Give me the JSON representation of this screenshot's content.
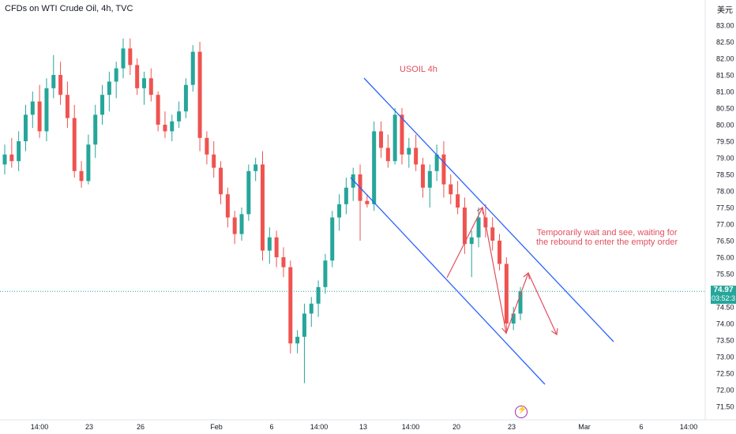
{
  "header": {
    "symbol": "CFDs on WTI Crude Oil, 4h, TVC",
    "currency": "美元"
  },
  "last_price": {
    "value": "74.97",
    "countdown": "03:52:3"
  },
  "annotations": {
    "title": "USOIL 4h",
    "note_line1": "Temporarily wait and see, waiting for",
    "note_line2": "the rebound to enter the empty order"
  },
  "colors": {
    "up": "#26a69a",
    "down": "#ef5350",
    "channel": "#2962ff",
    "arrow": "#e04f5f",
    "last_price_line": "#26a69a"
  },
  "chart_data": {
    "type": "candlestick",
    "title": "CFDs on WTI Crude Oil, 4h, TVC",
    "ylim": [
      71.25,
      83.25
    ],
    "y_ticks": [
      "83.00",
      "82.50",
      "82.00",
      "81.50",
      "81.00",
      "80.50",
      "80.00",
      "79.50",
      "79.00",
      "78.50",
      "78.00",
      "77.50",
      "77.00",
      "76.50",
      "76.00",
      "75.50",
      "75.00",
      "74.50",
      "74.00",
      "73.50",
      "73.00",
      "72.50",
      "72.00",
      "71.50"
    ],
    "x_ticks": [
      "14:00",
      "23",
      "26",
      "Feb",
      "6",
      "14:00",
      "13",
      "14:00",
      "20",
      "23",
      "Mar",
      "6",
      "14:00"
    ],
    "candles": [
      {
        "o": 78.8,
        "h": 79.4,
        "l": 78.5,
        "c": 79.1
      },
      {
        "o": 79.1,
        "h": 79.6,
        "l": 78.7,
        "c": 78.9
      },
      {
        "o": 78.9,
        "h": 79.8,
        "l": 78.6,
        "c": 79.5
      },
      {
        "o": 79.5,
        "h": 80.6,
        "l": 79.2,
        "c": 80.3
      },
      {
        "o": 80.3,
        "h": 81.0,
        "l": 79.9,
        "c": 80.7
      },
      {
        "o": 80.7,
        "h": 81.2,
        "l": 79.6,
        "c": 79.8
      },
      {
        "o": 79.8,
        "h": 81.4,
        "l": 79.5,
        "c": 81.1
      },
      {
        "o": 81.1,
        "h": 82.1,
        "l": 80.8,
        "c": 81.5
      },
      {
        "o": 81.5,
        "h": 81.9,
        "l": 80.6,
        "c": 80.9
      },
      {
        "o": 80.9,
        "h": 81.3,
        "l": 79.9,
        "c": 80.2
      },
      {
        "o": 80.2,
        "h": 80.6,
        "l": 78.4,
        "c": 78.6
      },
      {
        "o": 78.6,
        "h": 78.9,
        "l": 78.1,
        "c": 78.3
      },
      {
        "o": 78.3,
        "h": 79.7,
        "l": 78.2,
        "c": 79.4
      },
      {
        "o": 79.4,
        "h": 80.6,
        "l": 79.0,
        "c": 80.3
      },
      {
        "o": 80.3,
        "h": 81.2,
        "l": 80.0,
        "c": 80.9
      },
      {
        "o": 80.9,
        "h": 81.6,
        "l": 80.4,
        "c": 81.3
      },
      {
        "o": 81.3,
        "h": 81.9,
        "l": 80.8,
        "c": 81.7
      },
      {
        "o": 81.7,
        "h": 82.6,
        "l": 81.4,
        "c": 82.3
      },
      {
        "o": 82.3,
        "h": 82.6,
        "l": 81.5,
        "c": 81.8
      },
      {
        "o": 81.8,
        "h": 82.0,
        "l": 80.9,
        "c": 81.1
      },
      {
        "o": 81.1,
        "h": 81.6,
        "l": 80.6,
        "c": 81.4
      },
      {
        "o": 81.4,
        "h": 81.7,
        "l": 80.7,
        "c": 80.9
      },
      {
        "o": 80.9,
        "h": 81.0,
        "l": 79.8,
        "c": 80.0
      },
      {
        "o": 80.0,
        "h": 80.4,
        "l": 79.6,
        "c": 79.8
      },
      {
        "o": 79.8,
        "h": 80.3,
        "l": 79.5,
        "c": 80.1
      },
      {
        "o": 80.1,
        "h": 80.7,
        "l": 79.9,
        "c": 80.4
      },
      {
        "o": 80.4,
        "h": 81.4,
        "l": 80.2,
        "c": 81.2
      },
      {
        "o": 81.2,
        "h": 82.4,
        "l": 81.0,
        "c": 82.2
      },
      {
        "o": 82.2,
        "h": 82.5,
        "l": 79.2,
        "c": 79.6
      },
      {
        "o": 79.6,
        "h": 79.8,
        "l": 78.8,
        "c": 79.1
      },
      {
        "o": 79.1,
        "h": 79.5,
        "l": 78.4,
        "c": 78.7
      },
      {
        "o": 78.7,
        "h": 78.9,
        "l": 77.6,
        "c": 77.9
      },
      {
        "o": 77.9,
        "h": 78.1,
        "l": 76.9,
        "c": 77.2
      },
      {
        "o": 77.2,
        "h": 77.4,
        "l": 76.4,
        "c": 76.7
      },
      {
        "o": 76.7,
        "h": 77.5,
        "l": 76.5,
        "c": 77.3
      },
      {
        "o": 77.3,
        "h": 78.8,
        "l": 77.1,
        "c": 78.6
      },
      {
        "o": 78.6,
        "h": 79.0,
        "l": 78.3,
        "c": 78.8
      },
      {
        "o": 78.8,
        "h": 79.2,
        "l": 75.9,
        "c": 76.2
      },
      {
        "o": 76.2,
        "h": 76.9,
        "l": 75.8,
        "c": 76.6
      },
      {
        "o": 76.6,
        "h": 76.8,
        "l": 75.7,
        "c": 76.0
      },
      {
        "o": 76.0,
        "h": 76.3,
        "l": 75.4,
        "c": 75.7
      },
      {
        "o": 75.7,
        "h": 75.9,
        "l": 73.1,
        "c": 73.4
      },
      {
        "o": 73.4,
        "h": 73.8,
        "l": 73.1,
        "c": 73.6
      },
      {
        "o": 73.6,
        "h": 74.6,
        "l": 72.2,
        "c": 74.3
      },
      {
        "o": 74.3,
        "h": 74.8,
        "l": 73.9,
        "c": 74.6
      },
      {
        "o": 74.6,
        "h": 75.3,
        "l": 74.2,
        "c": 75.1
      },
      {
        "o": 75.1,
        "h": 76.1,
        "l": 74.9,
        "c": 75.9
      },
      {
        "o": 75.9,
        "h": 77.4,
        "l": 75.7,
        "c": 77.2
      },
      {
        "o": 77.2,
        "h": 77.9,
        "l": 76.8,
        "c": 77.6
      },
      {
        "o": 77.6,
        "h": 78.4,
        "l": 77.3,
        "c": 78.1
      },
      {
        "o": 78.1,
        "h": 78.7,
        "l": 77.7,
        "c": 78.5
      },
      {
        "o": 78.5,
        "h": 78.8,
        "l": 76.5,
        "c": 77.7
      },
      {
        "o": 77.7,
        "h": 77.9,
        "l": 77.5,
        "c": 77.6
      },
      {
        "o": 77.6,
        "h": 80.1,
        "l": 77.4,
        "c": 79.8
      },
      {
        "o": 79.8,
        "h": 80.1,
        "l": 79.0,
        "c": 79.3
      },
      {
        "o": 79.3,
        "h": 79.7,
        "l": 78.7,
        "c": 78.9
      },
      {
        "o": 78.9,
        "h": 80.5,
        "l": 78.8,
        "c": 80.3
      },
      {
        "o": 80.3,
        "h": 80.5,
        "l": 78.8,
        "c": 79.1
      },
      {
        "o": 79.1,
        "h": 79.6,
        "l": 78.7,
        "c": 79.3
      },
      {
        "o": 79.3,
        "h": 79.7,
        "l": 78.6,
        "c": 78.8
      },
      {
        "o": 78.8,
        "h": 79.0,
        "l": 77.8,
        "c": 78.1
      },
      {
        "o": 78.1,
        "h": 78.8,
        "l": 77.5,
        "c": 78.6
      },
      {
        "o": 78.6,
        "h": 79.4,
        "l": 78.3,
        "c": 79.1
      },
      {
        "o": 79.1,
        "h": 79.5,
        "l": 77.8,
        "c": 78.2
      },
      {
        "o": 78.2,
        "h": 78.5,
        "l": 77.6,
        "c": 77.9
      },
      {
        "o": 77.9,
        "h": 78.3,
        "l": 77.3,
        "c": 77.5
      },
      {
        "o": 77.5,
        "h": 77.8,
        "l": 76.1,
        "c": 76.4
      },
      {
        "o": 76.4,
        "h": 76.8,
        "l": 75.4,
        "c": 76.6
      },
      {
        "o": 76.6,
        "h": 77.5,
        "l": 76.3,
        "c": 77.2
      },
      {
        "o": 77.2,
        "h": 77.6,
        "l": 76.6,
        "c": 76.9
      },
      {
        "o": 76.9,
        "h": 77.2,
        "l": 76.2,
        "c": 76.5
      },
      {
        "o": 76.5,
        "h": 76.7,
        "l": 75.6,
        "c": 75.8
      },
      {
        "o": 75.8,
        "h": 76.0,
        "l": 73.7,
        "c": 74.0
      },
      {
        "o": 74.0,
        "h": 74.5,
        "l": 73.8,
        "c": 74.3
      },
      {
        "o": 74.3,
        "h": 75.1,
        "l": 74.1,
        "c": 74.97
      }
    ],
    "channel": {
      "upper": [
        {
          "t": "Feb 12 10:00",
          "y": 81.4
        },
        {
          "t": "Mar 4 06:00",
          "y": 73.5
        }
      ],
      "lower": [
        {
          "t": "Feb 12 10:00",
          "y": 78.4
        },
        {
          "t": "Feb 26 14:00",
          "y": 72.2
        }
      ]
    },
    "last_price": 74.97
  }
}
